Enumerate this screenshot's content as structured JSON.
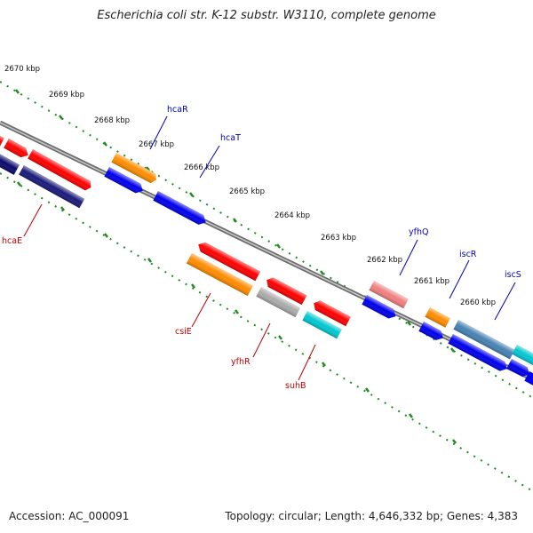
{
  "title": "Escherichia coli str. K-12 substr. W3110, complete genome",
  "footer": {
    "accession": "Accession: AC_000091",
    "summary": "Topology: circular; Length: 4,646,332 bp; Genes: 4,383"
  },
  "ticks": [
    "2670 kbp",
    "2669 kbp",
    "2668 kbp",
    "2667 kbp",
    "2666 kbp",
    "2665 kbp",
    "2664 kbp",
    "2663 kbp",
    "2662 kbp",
    "2661 kbp",
    "2660 kbp"
  ],
  "genes_top": [
    "hcaR",
    "hcaT",
    "yfhQ",
    "iscR",
    "iscS"
  ],
  "genes_bottom": [
    "hcaE",
    "csiE",
    "yfhR",
    "suhB"
  ],
  "colors": {
    "backbone": "#777777",
    "tick_dots": "#228b22",
    "label_top": "#0000bb",
    "label_bottom": "#bb0000",
    "red": "#ff0000",
    "blue": "#0000ee",
    "orange": "#ff8c00",
    "navy": "#0a0a6e",
    "gray": "#aaaaaa",
    "cyan": "#00c8d2",
    "pink": "#f08080",
    "steel": "#4682b4"
  }
}
